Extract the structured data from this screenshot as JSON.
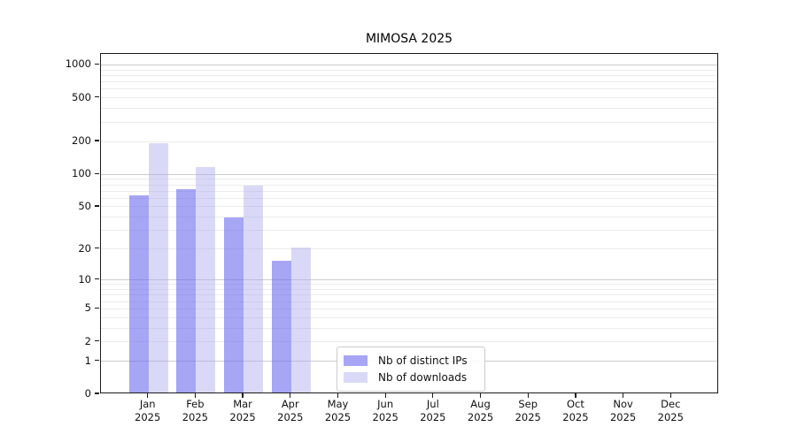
{
  "chart_data": {
    "type": "bar",
    "title": "MIMOSA 2025",
    "categories": [
      "Jan",
      "Feb",
      "Mar",
      "Apr",
      "May",
      "Jun",
      "Jul",
      "Aug",
      "Sep",
      "Oct",
      "Nov",
      "Dec"
    ],
    "category_year": "2025",
    "series": [
      {
        "name": "Nb of distinct IPs",
        "color": "rgba(102,102,238,0.58)",
        "values": [
          62,
          70,
          38,
          15,
          null,
          null,
          null,
          null,
          null,
          null,
          null,
          null
        ]
      },
      {
        "name": "Nb of downloads",
        "color": "rgba(170,170,238,0.45)",
        "values": [
          185,
          112,
          75,
          20,
          null,
          null,
          null,
          null,
          null,
          null,
          null,
          null
        ]
      }
    ],
    "xlabel": "",
    "ylabel": "",
    "yscale": "log10(value+1), 0 at baseline",
    "yticks": [
      0,
      1,
      2,
      5,
      10,
      20,
      50,
      100,
      200,
      500,
      1000
    ],
    "ylim": [
      0,
      1260
    ],
    "grid": "horizontal major (decades) + minor (2-9 per decade)",
    "legend_position": "inside plot, lower-center-left"
  },
  "colors": {
    "background": "#ffffff",
    "axis_spine": "#1a1a1a",
    "grid_major": "#cccccc",
    "grid_minor": "#ececec",
    "text": "#111111",
    "bar_distinct_ips": "rgba(102,102,238,0.58)",
    "bar_downloads": "rgba(170,170,238,0.45)"
  }
}
